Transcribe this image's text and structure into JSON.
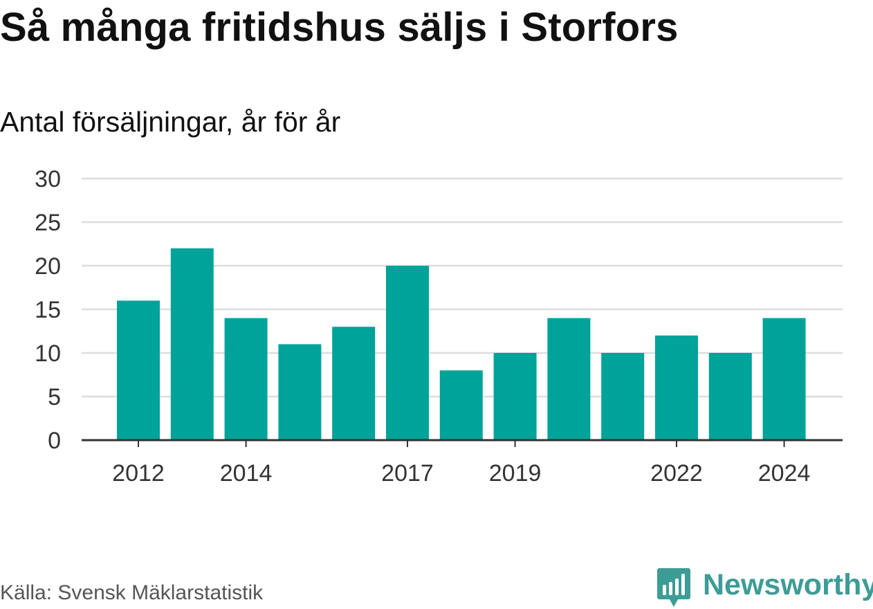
{
  "header": {
    "title": "Så många fritidshus säljs i Storfors",
    "subtitle": "Antal försäljningar, år för år"
  },
  "footer": {
    "source": "Källa: Svensk Mäklarstatistik",
    "brand": "Newsworthy"
  },
  "colors": {
    "bar": "#00a39a",
    "grid": "#dddddd",
    "axis": "#333333",
    "brand": "#3d9c96"
  },
  "chart_data": {
    "type": "bar",
    "title": "Så många fritidshus säljs i Storfors",
    "subtitle": "Antal försäljningar, år för år",
    "categories": [
      "2012",
      "2013",
      "2014",
      "2015",
      "2016",
      "2017",
      "2018",
      "2019",
      "2020",
      "2021",
      "2022",
      "2023",
      "2024"
    ],
    "values": [
      16,
      22,
      14,
      11,
      13,
      20,
      8,
      10,
      14,
      10,
      12,
      10,
      14
    ],
    "x_tick_labels": [
      "2012",
      "2014",
      "2017",
      "2019",
      "2022",
      "2024"
    ],
    "y_ticks": [
      0,
      5,
      10,
      15,
      20,
      25,
      30
    ],
    "ylim": [
      0,
      30
    ],
    "grid": true,
    "legend": "none"
  }
}
